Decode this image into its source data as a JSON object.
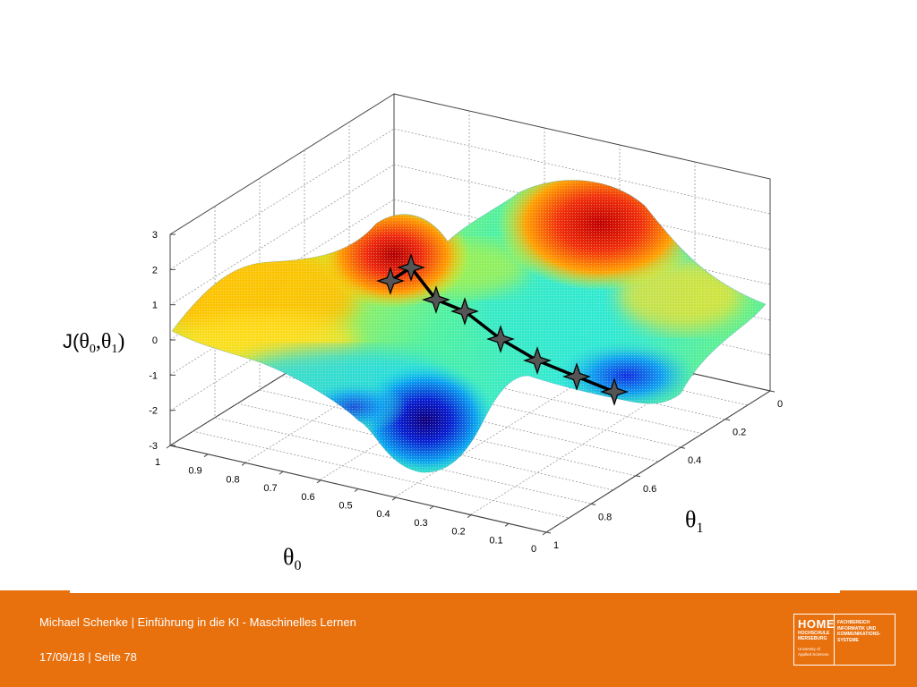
{
  "footer": {
    "title": "Michael Schenke | Einführung in  die KI - Maschinelles Lernen",
    "date_page": "17/09/18 | Seite 78",
    "logo_mark": "HOME",
    "logo_name": "HOCHSCHULE MERSEBURG",
    "logo_sub": "University of Applied Sciences",
    "logo_dept": "FACHBEREICH\nINFORMATIK UND\nKOMMUNIKATIONS-\nSYSTEME",
    "color": "#e8700d"
  },
  "chart_data": {
    "type": "surface3d",
    "title": "",
    "zlabel": "J(θ0,θ1)",
    "xlabel": "θ0",
    "ylabel": "θ1",
    "z_ticks": [
      "3",
      "2",
      "1",
      "0",
      "-1",
      "-2",
      "-3"
    ],
    "x_ticks": [
      "1",
      "0.9",
      "0.8",
      "0.7",
      "0.6",
      "0.5",
      "0.4",
      "0.3",
      "0.2",
      "0.1",
      "0"
    ],
    "y_ticks": [
      "0",
      "0.2",
      "0.4",
      "0.6",
      "0.8",
      "1"
    ],
    "xlim": [
      0,
      1
    ],
    "ylim": [
      0,
      1
    ],
    "zlim": [
      -3,
      3
    ],
    "colormap": "jet",
    "grid": true,
    "descent_path": [
      {
        "t0": 0.72,
        "t1": 0.38,
        "J": 2.05
      },
      {
        "t0": 0.68,
        "t1": 0.41,
        "J": 2.2
      },
      {
        "t0": 0.63,
        "t1": 0.45,
        "J": 1.35
      },
      {
        "t0": 0.57,
        "t1": 0.49,
        "J": 1.05
      },
      {
        "t0": 0.48,
        "t1": 0.54,
        "J": 0.75
      },
      {
        "t0": 0.37,
        "t1": 0.61,
        "J": 0.3
      },
      {
        "t0": 0.28,
        "t1": 0.68,
        "J": 0.1
      },
      {
        "t0": 0.18,
        "t1": 0.76,
        "J": -0.15
      }
    ]
  }
}
